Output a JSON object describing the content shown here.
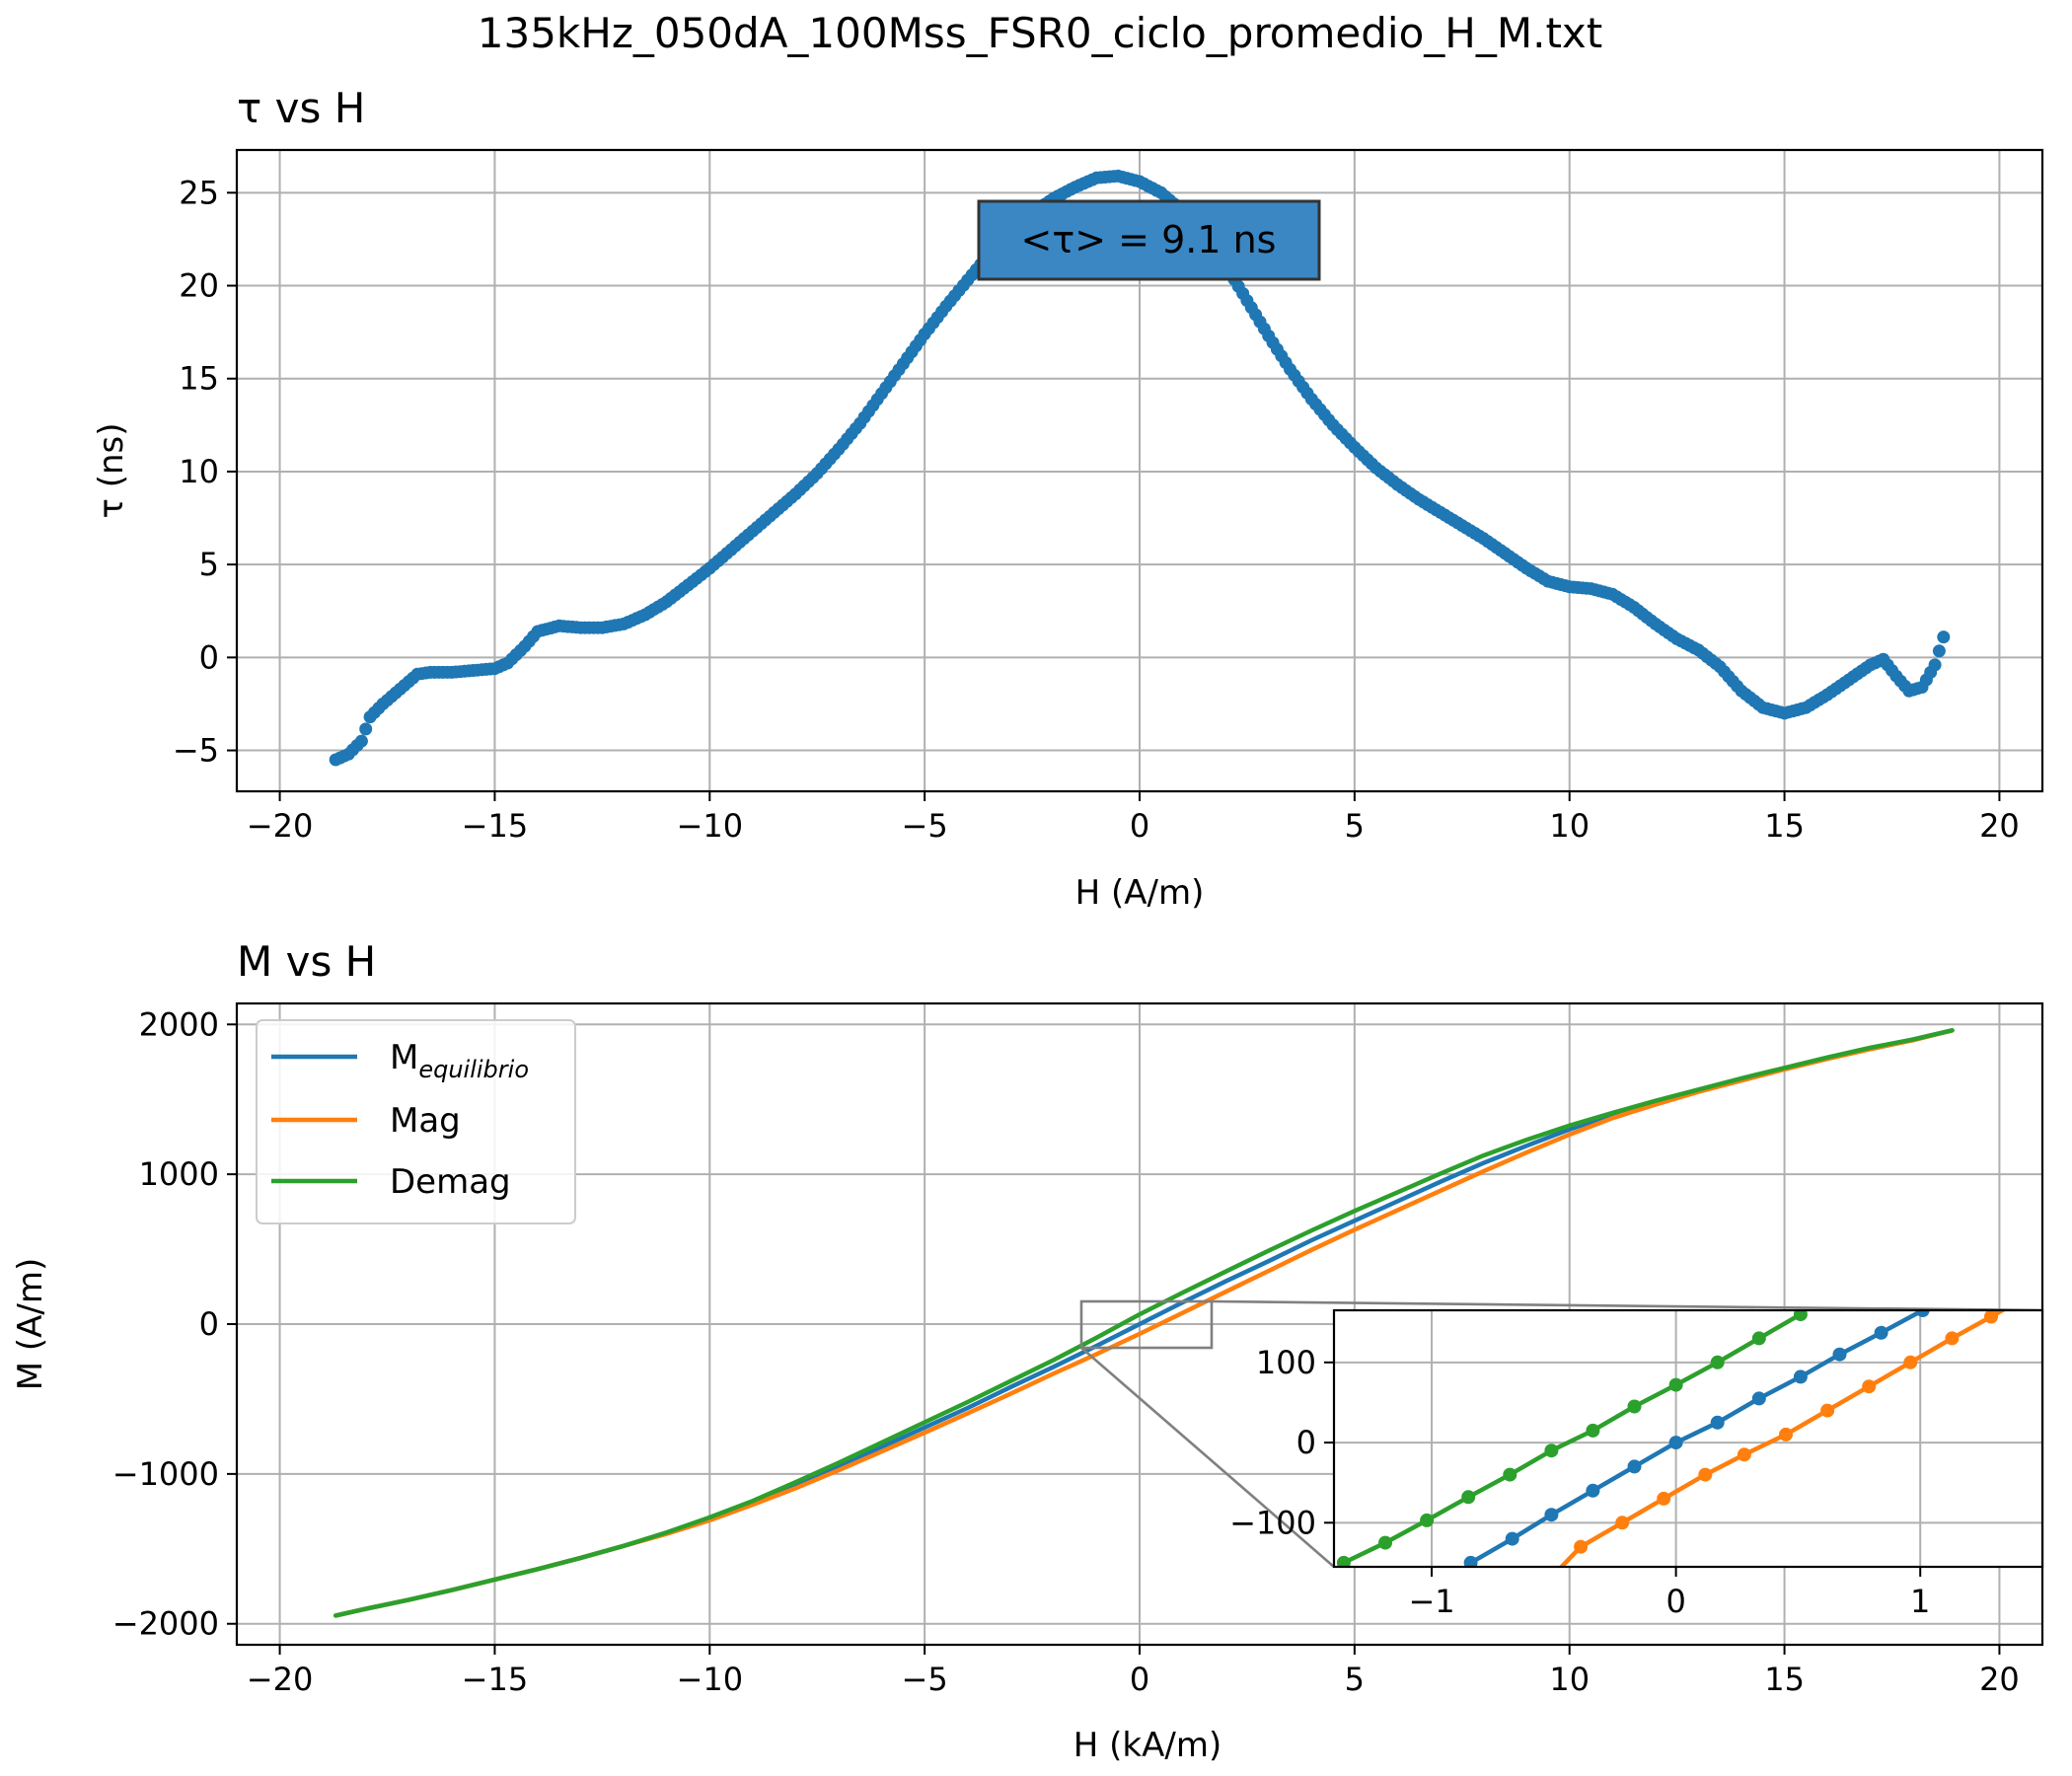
{
  "figure": {
    "suptitle": "135kHz_050dA_100Mss_FSR0_ciclo_promedio_H_M.txt"
  },
  "chart_data": [
    {
      "type": "scatter",
      "title": "τ vs H",
      "xlabel": "H (A/m)",
      "ylabel": "τ (ns)",
      "xlim": [
        -21.0,
        21.0
      ],
      "ylim": [
        -7.2,
        27.3
      ],
      "xticks": [
        -20,
        -15,
        -10,
        -5,
        0,
        5,
        10,
        15,
        20
      ],
      "xtick_labels": [
        "−20",
        "−15",
        "−10",
        "−5",
        "0",
        "5",
        "10",
        "15",
        "20"
      ],
      "yticks": [
        -5,
        0,
        5,
        10,
        15,
        20,
        25
      ],
      "ytick_labels": [
        "−5",
        "0",
        "5",
        "10",
        "15",
        "20",
        "25"
      ],
      "grid": true,
      "annotation": {
        "text": "<τ> = 9.1 ns",
        "box_color": "#3a87c4"
      },
      "series": [
        {
          "color": "#1f77b4",
          "x": [
            -18.7,
            -18.4,
            -18.1,
            -17.9,
            -17.6,
            -17.3,
            -17.0,
            -16.8,
            -16.5,
            -16.0,
            -15.5,
            -15.0,
            -14.7,
            -14.3,
            -14.0,
            -13.5,
            -13.0,
            -12.5,
            -12.0,
            -11.5,
            -11.0,
            -10.5,
            -10.0,
            -9.5,
            -9.0,
            -8.5,
            -8.0,
            -7.5,
            -7.0,
            -6.5,
            -6.0,
            -5.5,
            -5.0,
            -4.5,
            -4.0,
            -3.5,
            -3.0,
            -2.5,
            -2.0,
            -1.5,
            -1.0,
            -0.5,
            0.0,
            0.5,
            1.0,
            1.5,
            2.0,
            2.5,
            3.0,
            3.5,
            4.0,
            4.5,
            5.0,
            5.5,
            6.0,
            6.5,
            7.0,
            7.5,
            8.0,
            8.5,
            9.0,
            9.5,
            10.0,
            10.5,
            11.0,
            11.5,
            12.0,
            12.5,
            13.0,
            13.5,
            14.0,
            14.5,
            15.0,
            15.5,
            16.0,
            16.5,
            17.0,
            17.3,
            17.6,
            17.9,
            18.2,
            18.5,
            18.7
          ],
          "y": [
            -5.5,
            -5.2,
            -4.5,
            -3.2,
            -2.5,
            -1.9,
            -1.3,
            -0.9,
            -0.8,
            -0.8,
            -0.7,
            -0.6,
            -0.3,
            0.6,
            1.4,
            1.7,
            1.6,
            1.6,
            1.8,
            2.3,
            3.0,
            3.9,
            4.8,
            5.8,
            6.8,
            7.8,
            8.8,
            9.9,
            11.2,
            12.6,
            14.2,
            15.8,
            17.4,
            18.9,
            20.3,
            21.7,
            22.9,
            23.9,
            24.7,
            25.3,
            25.8,
            25.9,
            25.6,
            25.0,
            24.0,
            22.7,
            21.1,
            19.2,
            17.3,
            15.5,
            13.9,
            12.5,
            11.3,
            10.2,
            9.3,
            8.5,
            7.8,
            7.1,
            6.4,
            5.6,
            4.8,
            4.1,
            3.8,
            3.7,
            3.4,
            2.7,
            1.8,
            1.0,
            0.4,
            -0.5,
            -1.8,
            -2.7,
            -3.0,
            -2.7,
            -2.0,
            -1.2,
            -0.4,
            -0.1,
            -1.0,
            -1.8,
            -1.6,
            -0.4,
            1.1
          ]
        }
      ]
    },
    {
      "type": "line",
      "title": "M vs H",
      "xlabel": "H (kA/m)",
      "ylabel": "M (A/m)",
      "xlim": [
        -21.0,
        21.0
      ],
      "ylim": [
        -2140,
        2140
      ],
      "xticks": [
        -20,
        -15,
        -10,
        -5,
        0,
        5,
        10,
        15,
        20
      ],
      "xtick_labels": [
        "−20",
        "−15",
        "−10",
        "−5",
        "0",
        "5",
        "10",
        "15",
        "20"
      ],
      "yticks": [
        -2000,
        -1000,
        0,
        1000,
        2000
      ],
      "ytick_labels": [
        "−2000",
        "−1000",
        "0",
        "1000",
        "2000"
      ],
      "grid": true,
      "legend_position": "upper-left",
      "legend": [
        {
          "name": "M",
          "subscript": "equilibrio",
          "color": "#1f77b4"
        },
        {
          "name": "Mag",
          "color": "#ff7f0e"
        },
        {
          "name": "Demag",
          "color": "#2ca02c"
        }
      ],
      "series": [
        {
          "name": "Mequilibrio",
          "color": "#1f77b4",
          "x": [
            -18.7,
            -18.0,
            -17.0,
            -16.0,
            -15.0,
            -14.0,
            -13.0,
            -12.0,
            -11.0,
            -10.0,
            -9.0,
            -8.0,
            -7.0,
            -6.0,
            -5.0,
            -4.0,
            -3.0,
            -2.0,
            -1.0,
            0.0,
            1.0,
            2.0,
            3.0,
            4.0,
            5.0,
            6.0,
            7.0,
            8.0,
            9.0,
            10.0,
            11.0,
            12.0,
            13.0,
            14.0,
            15.0,
            16.0,
            17.0,
            18.0,
            18.9
          ],
          "y": [
            -1945,
            -1900,
            -1840,
            -1775,
            -1705,
            -1635,
            -1560,
            -1480,
            -1395,
            -1300,
            -1190,
            -1075,
            -950,
            -820,
            -690,
            -560,
            -420,
            -285,
            -145,
            0,
            145,
            285,
            420,
            560,
            690,
            820,
            950,
            1075,
            1190,
            1300,
            1395,
            1480,
            1560,
            1635,
            1705,
            1775,
            1840,
            1900,
            1960
          ]
        },
        {
          "name": "Mag",
          "color": "#ff7f0e",
          "x": [
            -18.7,
            -18.0,
            -17.0,
            -16.0,
            -15.0,
            -14.0,
            -13.0,
            -12.0,
            -11.0,
            -10.0,
            -9.0,
            -8.0,
            -7.0,
            -6.0,
            -5.0,
            -4.0,
            -3.0,
            -2.0,
            -1.0,
            0.0,
            1.0,
            2.0,
            3.0,
            4.0,
            5.0,
            6.0,
            7.0,
            8.0,
            9.0,
            10.0,
            11.0,
            12.0,
            13.0,
            14.0,
            15.0,
            16.0,
            17.0,
            18.0,
            18.9
          ],
          "y": [
            -1945,
            -1900,
            -1840,
            -1775,
            -1705,
            -1635,
            -1560,
            -1480,
            -1400,
            -1310,
            -1205,
            -1095,
            -975,
            -850,
            -725,
            -595,
            -465,
            -330,
            -200,
            -65,
            75,
            215,
            355,
            495,
            630,
            760,
            890,
            1020,
            1145,
            1265,
            1375,
            1465,
            1550,
            1625,
            1700,
            1770,
            1835,
            1895,
            1960
          ]
        },
        {
          "name": "Demag",
          "color": "#2ca02c",
          "x": [
            -18.7,
            -18.0,
            -17.0,
            -16.0,
            -15.0,
            -14.0,
            -13.0,
            -12.0,
            -11.0,
            -10.0,
            -9.0,
            -8.0,
            -7.0,
            -6.0,
            -5.0,
            -4.0,
            -3.0,
            -2.0,
            -1.0,
            0.0,
            1.0,
            2.0,
            3.0,
            4.0,
            5.0,
            6.0,
            7.0,
            8.0,
            9.0,
            10.0,
            11.0,
            12.0,
            13.0,
            14.0,
            15.0,
            16.0,
            17.0,
            18.0,
            18.9
          ],
          "y": [
            -1945,
            -1900,
            -1840,
            -1775,
            -1705,
            -1635,
            -1560,
            -1480,
            -1390,
            -1290,
            -1180,
            -1055,
            -925,
            -790,
            -655,
            -520,
            -380,
            -240,
            -90,
            65,
            210,
            350,
            490,
            625,
            755,
            880,
            1005,
            1125,
            1230,
            1325,
            1410,
            1490,
            1565,
            1640,
            1710,
            1780,
            1845,
            1900,
            1960
          ]
        }
      ],
      "inset": {
        "xlim": [
          -1.4,
          1.5
        ],
        "ylim": [
          -155,
          165
        ],
        "xticks": [
          -1,
          0,
          1
        ],
        "xtick_labels": [
          "−1",
          "0",
          "1"
        ],
        "yticks": [
          -100,
          0,
          100
        ],
        "ytick_labels": [
          "−100",
          "0",
          "100"
        ],
        "grid": true,
        "series": [
          {
            "name": "Mequilibrio",
            "color": "#1f77b4",
            "x": [
              -0.84,
              -0.67,
              -0.51,
              -0.34,
              -0.17,
              0.0,
              0.17,
              0.34,
              0.51,
              0.67,
              0.84,
              1.01
            ],
            "y": [
              -150,
              -120,
              -90,
              -60,
              -30,
              0,
              25,
              55,
              82,
              110,
              137,
              165
            ]
          },
          {
            "name": "Mag",
            "color": "#ff7f0e",
            "x": [
              -0.5,
              -0.39,
              -0.22,
              -0.05,
              0.12,
              0.28,
              0.45,
              0.62,
              0.79,
              0.96,
              1.13,
              1.29,
              1.45
            ],
            "y": [
              -165,
              -130,
              -100,
              -70,
              -40,
              -15,
              10,
              40,
              70,
              100,
              130,
              157,
              185
            ]
          },
          {
            "name": "Demag",
            "color": "#2ca02c",
            "x": [
              -1.36,
              -1.19,
              -1.02,
              -0.85,
              -0.68,
              -0.51,
              -0.34,
              -0.17,
              0.0,
              0.17,
              0.34,
              0.51
            ],
            "y": [
              -150,
              -125,
              -97,
              -68,
              -40,
              -10,
              15,
              45,
              72,
              100,
              130,
              160
            ]
          }
        ]
      }
    }
  ]
}
